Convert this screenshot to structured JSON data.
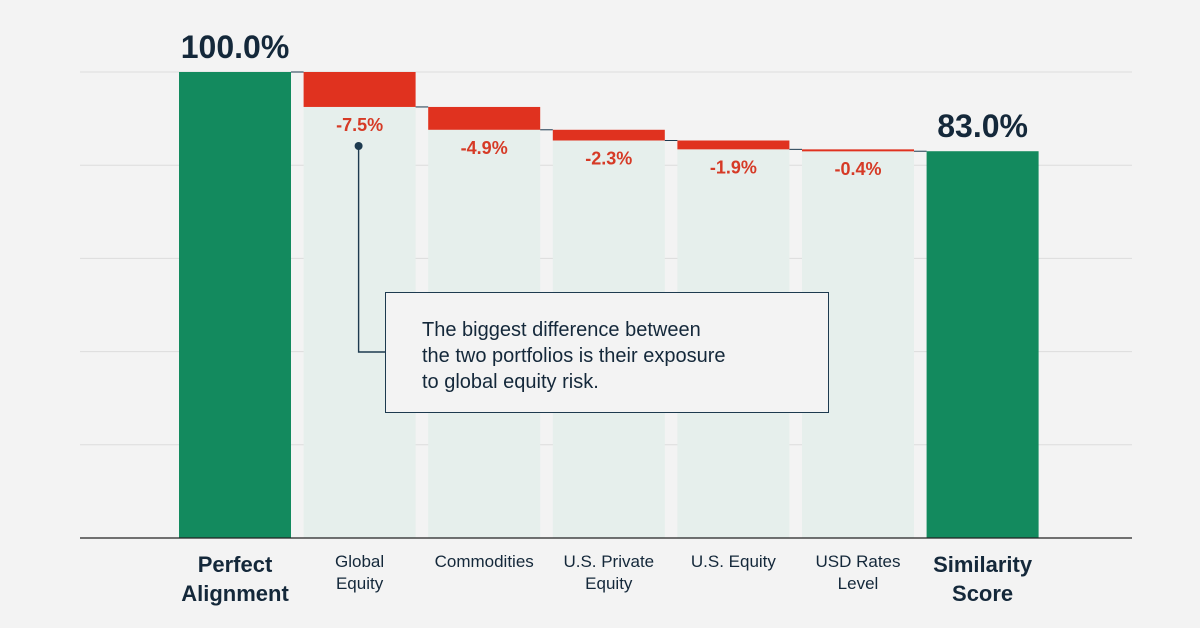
{
  "chart_data": {
    "type": "waterfall",
    "unit": "%",
    "ylim": [
      0,
      100
    ],
    "categories": [
      "Perfect Alignment",
      "Global Equity",
      "Commodities",
      "U.S. Private Equity",
      "U.S. Equity",
      "USD Rates Level",
      "Similarity Score"
    ],
    "category_lines": [
      [
        "Perfect",
        "Alignment"
      ],
      [
        "Global",
        "Equity"
      ],
      [
        "Commodities"
      ],
      [
        "U.S. Private",
        "Equity"
      ],
      [
        "U.S. Equity"
      ],
      [
        "USD Rates",
        "Level"
      ],
      [
        "Similarity",
        "Score"
      ]
    ],
    "values": [
      100.0,
      -7.5,
      -4.9,
      -2.3,
      -1.9,
      -0.4,
      83.0
    ],
    "bar_kinds": [
      "total",
      "delta",
      "delta",
      "delta",
      "delta",
      "delta",
      "total"
    ],
    "data_labels": [
      "100.0%",
      "-7.5%",
      "-4.9%",
      "-2.3%",
      "-1.9%",
      "-0.4%",
      "83.0%"
    ],
    "grid": true,
    "annotation": {
      "text": "The biggest difference between the two portfolios is their exposure to global equity risk.",
      "lines": [
        "The biggest difference between",
        "the two portfolios is their exposure",
        "to global equity risk."
      ],
      "target_category": "Global Equity"
    },
    "colors": {
      "total": "#138a5e",
      "decrease": "#e0321f",
      "decrease_label": "#d63a26",
      "shade": "#e6efec",
      "grid": "#dcdcdc",
      "axis": "#222222",
      "text": "#14283a"
    }
  }
}
